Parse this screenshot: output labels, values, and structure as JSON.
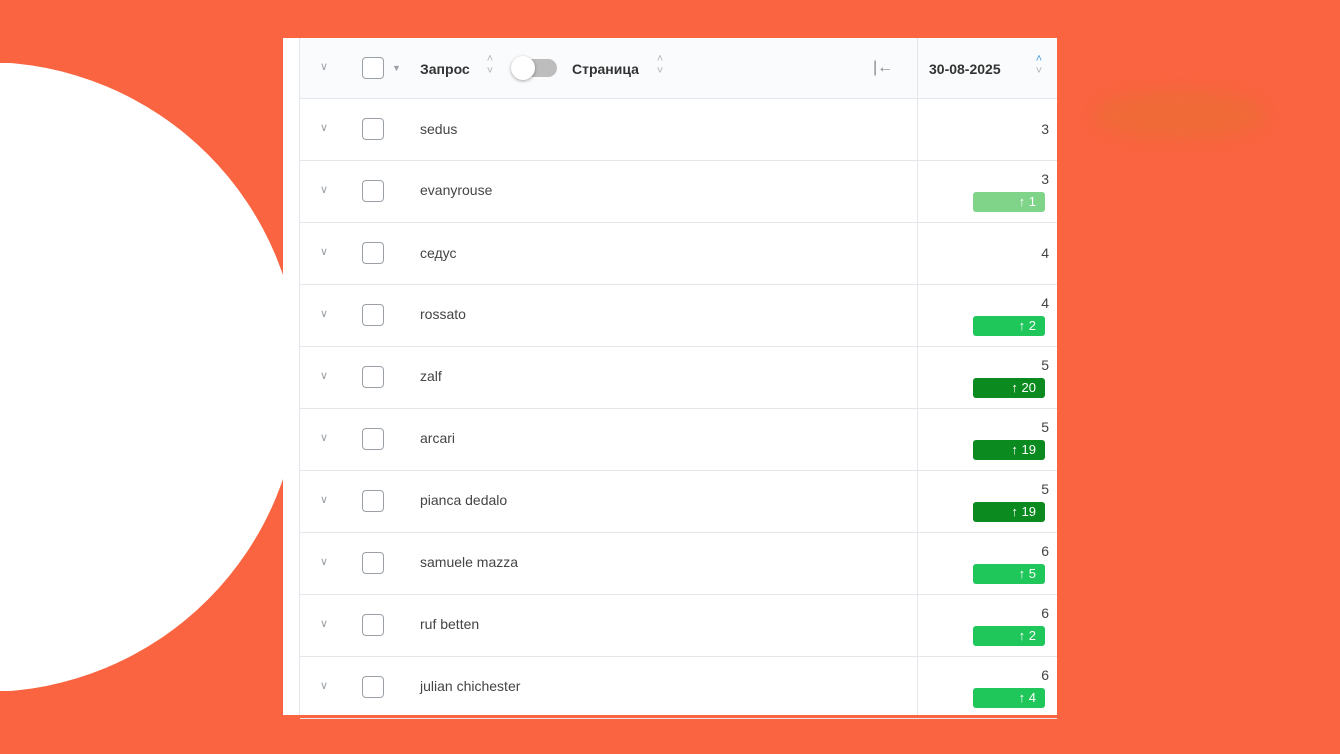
{
  "header": {
    "query_label": "Запрос",
    "page_label": "Страница",
    "date": "30-08-2025",
    "collapse_icon": "|←"
  },
  "colors": {
    "background": "#fa6440",
    "badge_light": "#7fd48a",
    "badge_mid": "#1fc75a",
    "badge_dark": "#0a8a1f"
  },
  "rows": [
    {
      "query": "sedus",
      "position": "3",
      "change": null
    },
    {
      "query": "evanyrouse",
      "position": "3",
      "change": "↑ 1",
      "level": "light"
    },
    {
      "query": "седус",
      "position": "4",
      "change": null
    },
    {
      "query": "rossato",
      "position": "4",
      "change": "↑ 2",
      "level": "mid"
    },
    {
      "query": "zalf",
      "position": "5",
      "change": "↑ 20",
      "level": "dark"
    },
    {
      "query": "arcari",
      "position": "5",
      "change": "↑ 19",
      "level": "dark"
    },
    {
      "query": "pianca dedalo",
      "position": "5",
      "change": "↑ 19",
      "level": "dark"
    },
    {
      "query": "samuele mazza",
      "position": "6",
      "change": "↑ 5",
      "level": "mid"
    },
    {
      "query": "ruf betten",
      "position": "6",
      "change": "↑ 2",
      "level": "mid"
    },
    {
      "query": "julian chichester",
      "position": "6",
      "change": "↑ 4",
      "level": "mid"
    }
  ]
}
